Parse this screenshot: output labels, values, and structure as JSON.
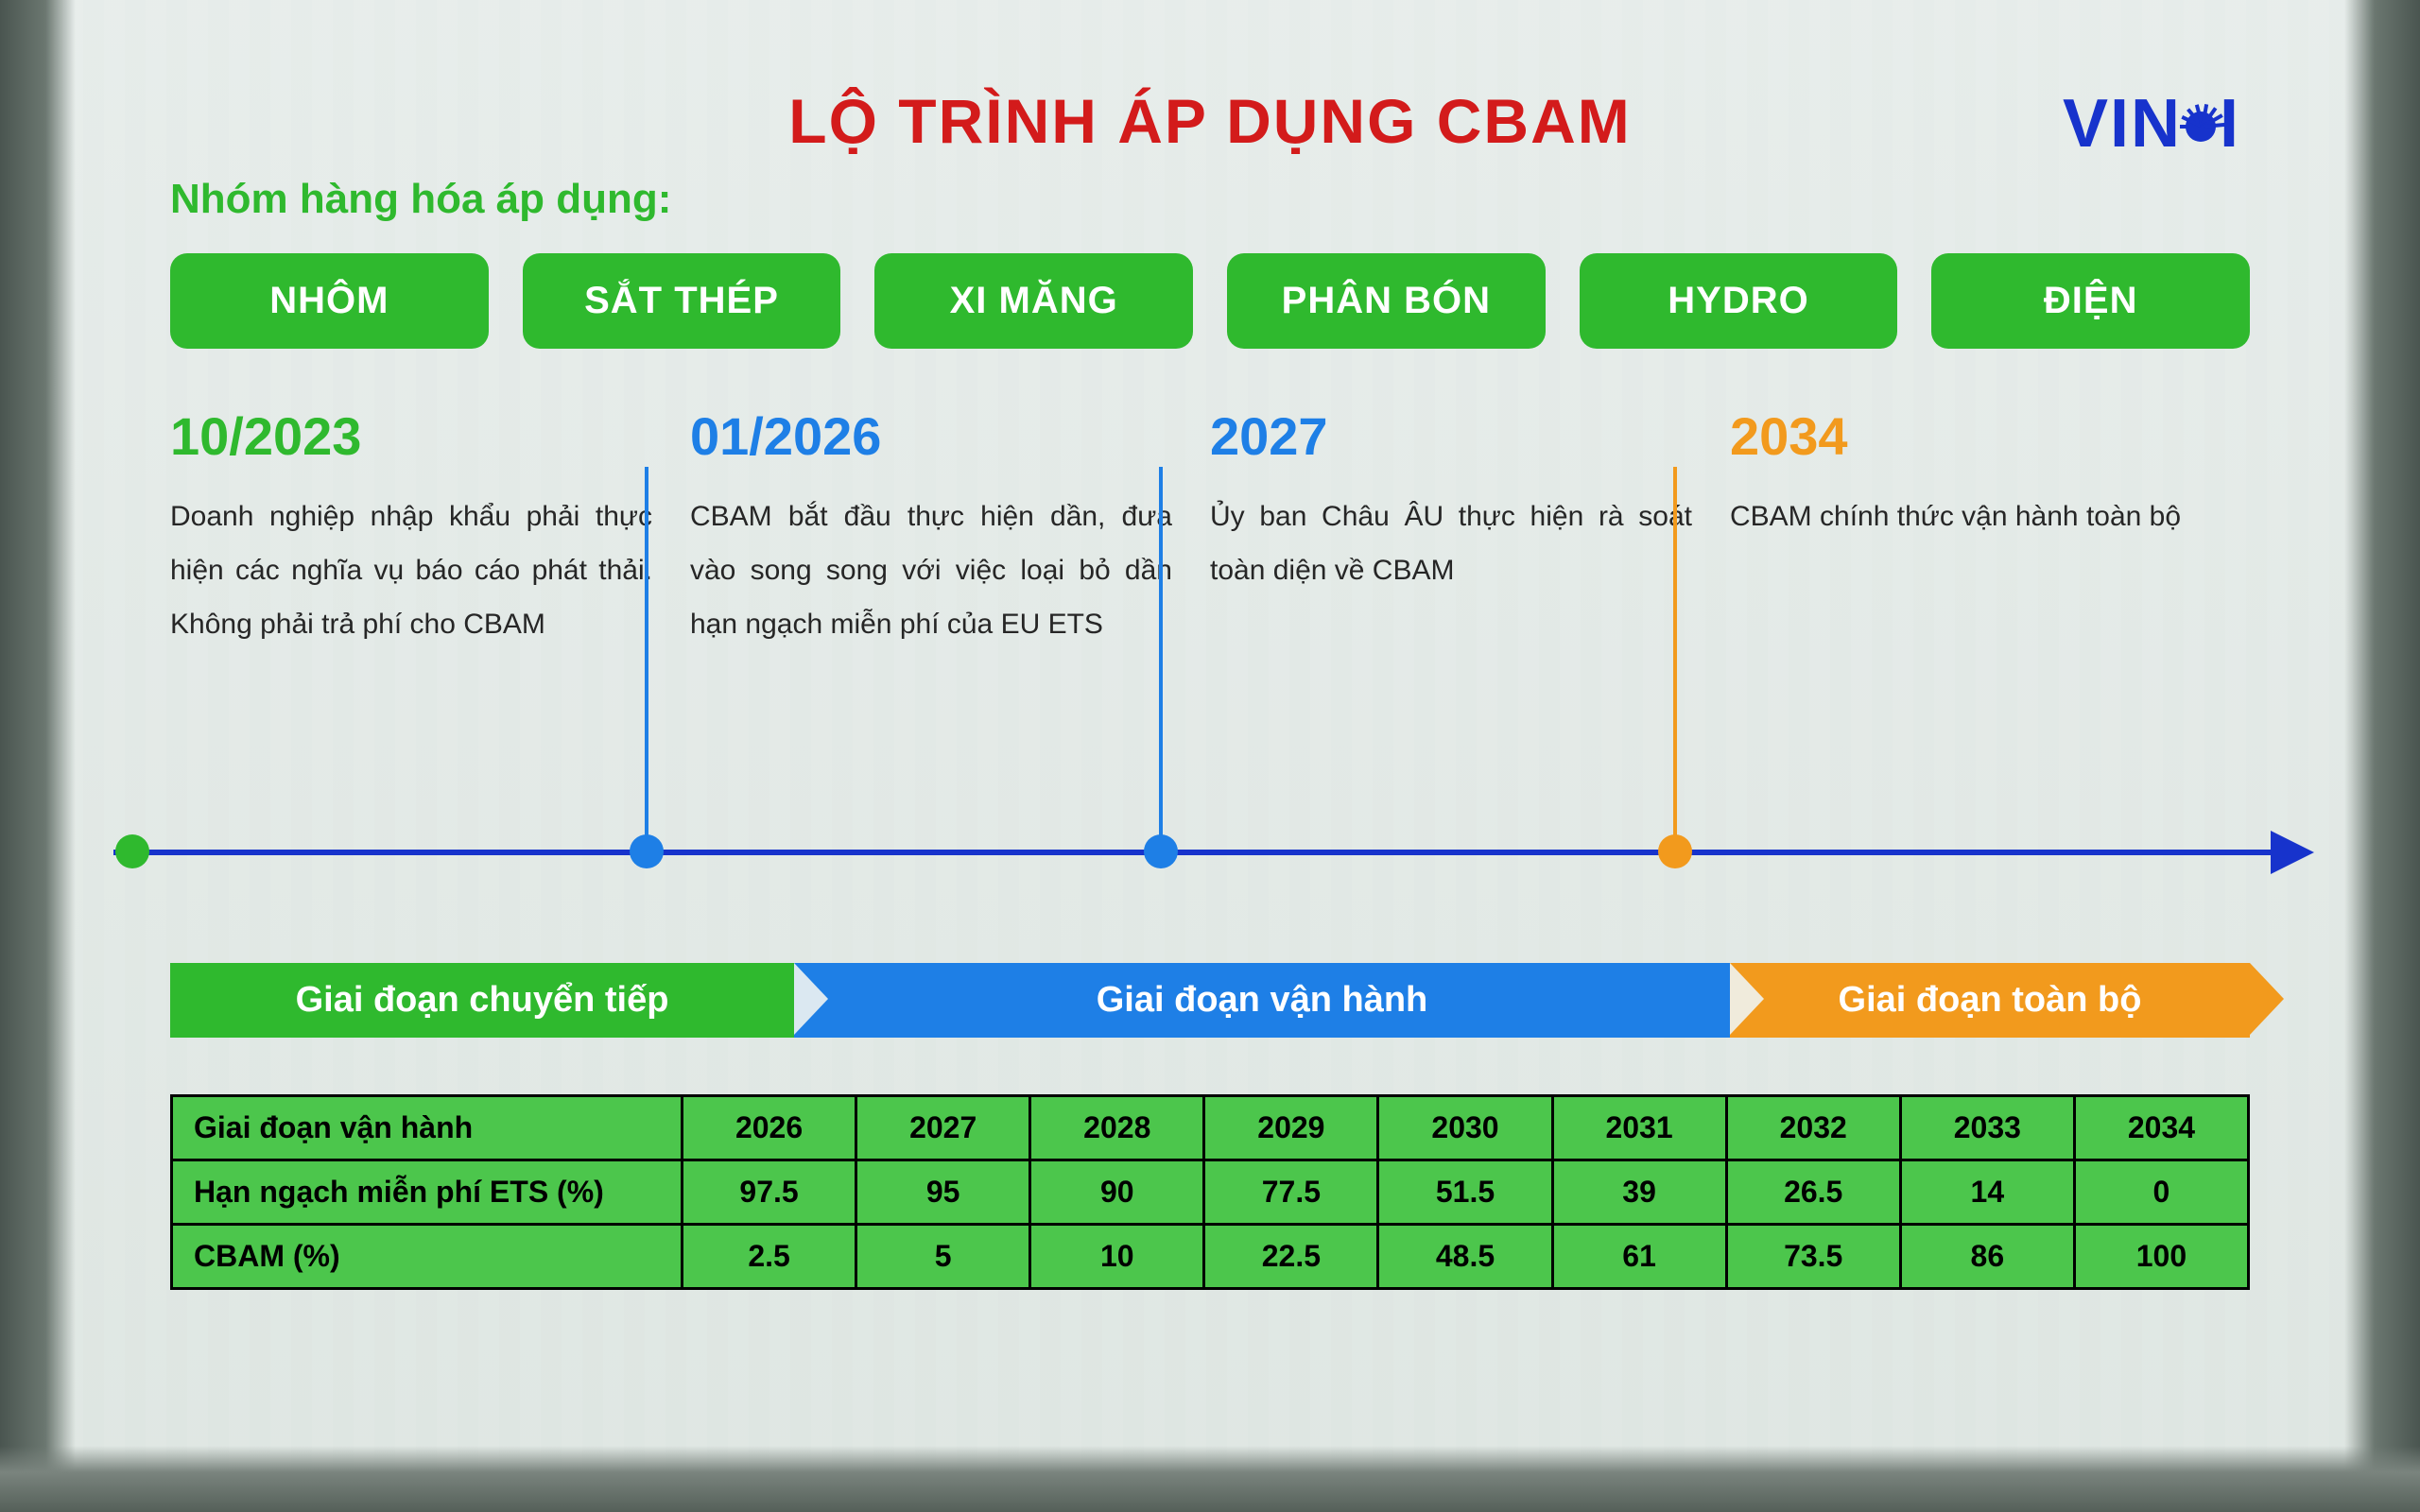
{
  "colors": {
    "green": "#2fb92e",
    "blue": "#1e7fe6",
    "navy": "#1733cc",
    "orange": "#f29a1d",
    "red": "#d31b1b",
    "tableGreen": "#4cc64c"
  },
  "title": "LỘ TRÌNH ÁP DỤNG CBAM",
  "logo": {
    "t1": "VIN",
    "t2": "I"
  },
  "subhead": "Nhóm hàng hóa áp dụng:",
  "categories": [
    "NHÔM",
    "SẮT THÉP",
    "XI MĂNG",
    "PHÂN BÓN",
    "HYDRO",
    "ĐIỆN"
  ],
  "timeline": [
    {
      "year": "10/2023",
      "color": "green",
      "width": 25,
      "desc": "Doanh nghiệp nhập khẩu phải thực hiện các nghĩa vụ báo cáo phát thải. Không phải trả phí cho CBAM",
      "dotX": -58,
      "stemH": 0
    },
    {
      "year": "01/2026",
      "color": "blue",
      "width": 25,
      "desc": "CBAM bắt đầu thực hiện dần, đưa vào song song với việc loại bỏ dần hạn ngạch miễn phí của EU ETS",
      "dotX": 486,
      "stemH": 405
    },
    {
      "year": "2027",
      "color": "blue",
      "width": 25,
      "desc": "Ủy ban Châu ÂU thực hiện rà soát toàn diện về CBAM",
      "dotX": 1030,
      "stemH": 405
    },
    {
      "year": "2034",
      "color": "orange",
      "width": 25,
      "desc": "CBAM chính thức vận hành toàn bộ",
      "dotX": 1574,
      "stemH": 405
    }
  ],
  "phases": [
    {
      "label": "Giai đoạn chuyển tiếp",
      "color": "green",
      "width": 30
    },
    {
      "label": "Giai đoạn vận hành",
      "color": "blue",
      "width": 45
    },
    {
      "label": "Giai đoạn toàn bộ",
      "color": "orange",
      "width": 25
    }
  ],
  "table": {
    "headerLabel": "Giai đoạn vận hành",
    "years": [
      "2026",
      "2027",
      "2028",
      "2029",
      "2030",
      "2031",
      "2032",
      "2033",
      "2034"
    ],
    "rows": [
      {
        "label": "Hạn ngạch miễn phí ETS (%)",
        "vals": [
          "97.5",
          "95",
          "90",
          "77.5",
          "51.5",
          "39",
          "26.5",
          "14",
          "0"
        ]
      },
      {
        "label": "CBAM (%)",
        "vals": [
          "2.5",
          "5",
          "10",
          "22.5",
          "48.5",
          "61",
          "73.5",
          "86",
          "100"
        ]
      }
    ]
  }
}
